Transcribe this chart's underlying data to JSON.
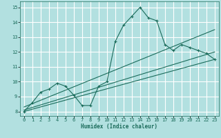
{
  "title": "",
  "xlabel": "Humidex (Indice chaleur)",
  "bg_color": "#b2e0e0",
  "grid_color": "#ffffff",
  "line_color": "#1a6b5a",
  "xlim": [
    -0.5,
    23.5
  ],
  "ylim": [
    7.7,
    15.4
  ],
  "xticks": [
    0,
    1,
    2,
    3,
    4,
    5,
    6,
    7,
    8,
    9,
    10,
    11,
    12,
    13,
    14,
    15,
    16,
    17,
    18,
    19,
    20,
    21,
    22,
    23
  ],
  "yticks": [
    8,
    9,
    10,
    11,
    12,
    13,
    14,
    15
  ],
  "main_curve_x": [
    0,
    1,
    2,
    3,
    4,
    5,
    6,
    7,
    8,
    9,
    10,
    11,
    12,
    13,
    14,
    15,
    16,
    17,
    18,
    19,
    20,
    21,
    22,
    23
  ],
  "main_curve_y": [
    8.0,
    8.6,
    9.3,
    9.5,
    9.9,
    9.7,
    9.1,
    8.4,
    8.4,
    9.7,
    10.0,
    12.7,
    13.8,
    14.4,
    15.0,
    14.3,
    14.1,
    12.5,
    12.1,
    12.5,
    12.3,
    12.1,
    11.9,
    11.5
  ],
  "trend1_x": [
    0,
    23
  ],
  "trend1_y": [
    8.0,
    11.5
  ],
  "trend2_x": [
    0,
    23
  ],
  "trend2_y": [
    8.1,
    12.0
  ],
  "trend3_x": [
    0,
    23
  ],
  "trend3_y": [
    8.3,
    13.5
  ]
}
